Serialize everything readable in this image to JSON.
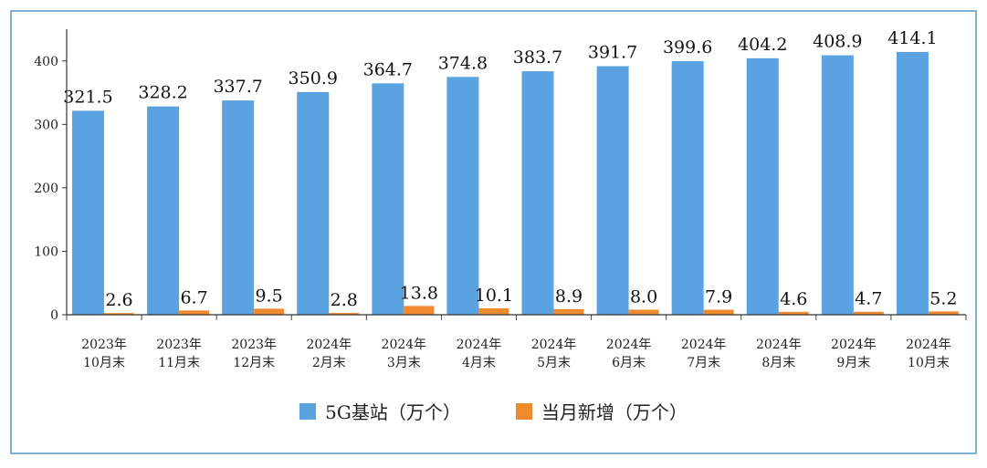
{
  "chart_data": {
    "type": "bar",
    "categories": [
      [
        "2023年",
        "10月末"
      ],
      [
        "2023年",
        "11月末"
      ],
      [
        "2023年",
        "12月末"
      ],
      [
        "2024年",
        "2月末"
      ],
      [
        "2024年",
        "3月末"
      ],
      [
        "2024年",
        "4月末"
      ],
      [
        "2024年",
        "5月末"
      ],
      [
        "2024年",
        "6月末"
      ],
      [
        "2024年",
        "7月末"
      ],
      [
        "2024年",
        "8月末"
      ],
      [
        "2024年",
        "9月末"
      ],
      [
        "2024年",
        "10月末"
      ]
    ],
    "series": [
      {
        "name": "5G基站（万个）",
        "color": "#5ba3e0",
        "values": [
          321.5,
          328.2,
          337.7,
          350.9,
          364.7,
          374.8,
          383.7,
          391.7,
          399.6,
          404.2,
          408.9,
          414.1
        ],
        "labels": [
          "321.5",
          "328.2",
          "337.7",
          "350.9",
          "364.7",
          "374.8",
          "383.7",
          "391.7",
          "399.6",
          "404.2",
          "408.9",
          "414.1"
        ]
      },
      {
        "name": "当月新增（万个）",
        "color": "#f08a2e",
        "values": [
          2.6,
          6.7,
          9.5,
          2.8,
          13.8,
          10.1,
          8.9,
          8.0,
          7.9,
          4.6,
          4.7,
          5.2
        ],
        "labels": [
          "2.6",
          "6.7",
          "9.5",
          "2.8",
          "13.8",
          "10.1",
          "8.9",
          "8.0",
          "7.9",
          "4.6",
          "4.7",
          "5.2"
        ]
      }
    ],
    "yticks": [
      0,
      100,
      200,
      300,
      400
    ],
    "ytick_labels": [
      "0",
      "100",
      "200",
      "300",
      "400"
    ],
    "ylim": [
      0,
      450
    ],
    "grid": false,
    "legend_position": "bottom"
  }
}
